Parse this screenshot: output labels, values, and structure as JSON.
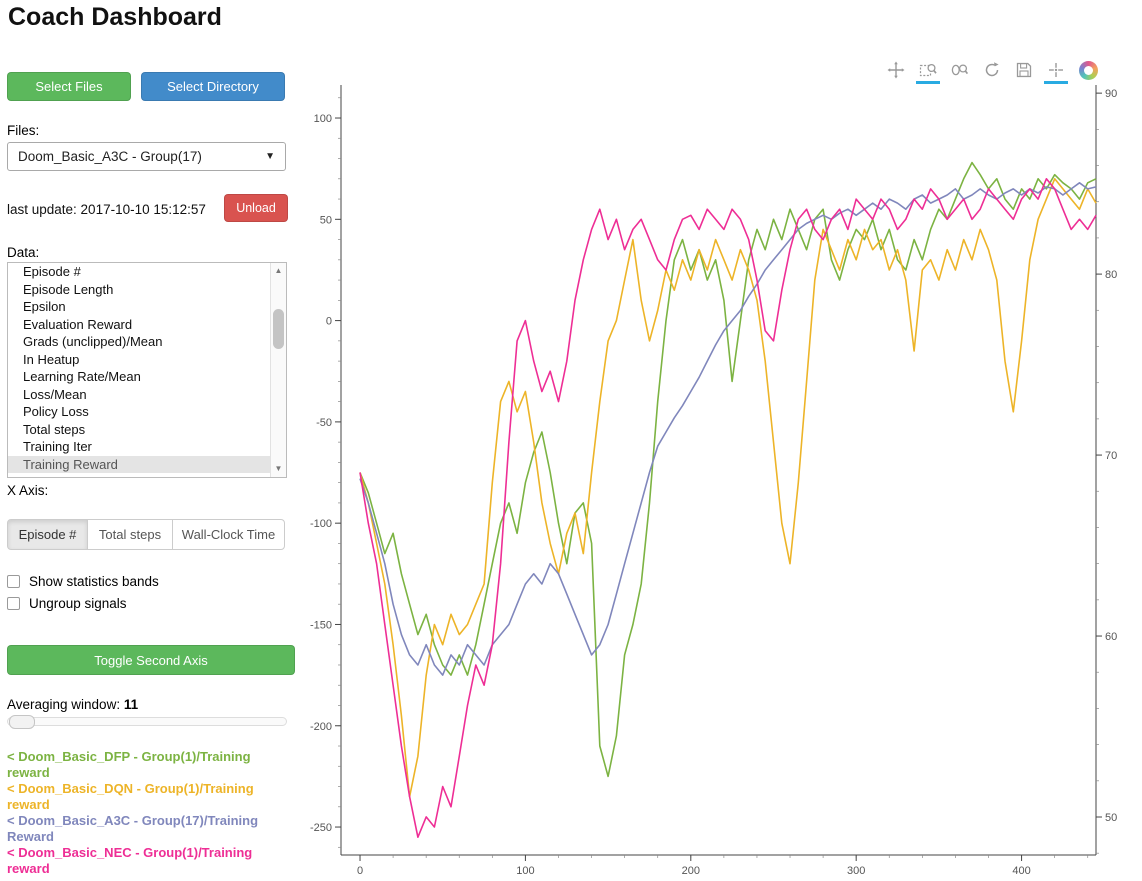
{
  "page": {
    "title": "Coach Dashboard"
  },
  "sidebar": {
    "select_files": "Select Files",
    "select_directory": "Select Directory",
    "files_label": "Files:",
    "files_value": "Doom_Basic_A3C - Group(17)",
    "last_update": "last update: 2017-10-10 15:12:57",
    "unload": "Unload",
    "data_label": "Data:",
    "data_list": [
      "Episode #",
      "Episode Length",
      "Epsilon",
      "Evaluation Reward",
      "Grads (unclipped)/Mean",
      "In Heatup",
      "Learning Rate/Mean",
      "Loss/Mean",
      "Policy Loss",
      "Total steps",
      "Training Iter",
      "Training Reward"
    ],
    "data_list_selected": "Training Reward",
    "x_axis_label": "X Axis:",
    "x_axis_options": [
      "Episode #",
      "Total steps",
      "Wall-Clock Time"
    ],
    "x_axis_active": "Episode #",
    "show_bands_label": "Show statistics bands",
    "ungroup_label": "Ungroup signals",
    "toggle_second_axis": "Toggle Second Axis",
    "averaging_label": "Averaging window:",
    "averaging_value": "11",
    "legend": [
      {
        "label": "< Doom_Basic_DFP - Group(1)/Training reward",
        "color": "#7cb342"
      },
      {
        "label": "< Doom_Basic_DQN - Group(1)/Training reward",
        "color": "#edb428"
      },
      {
        "label": "< Doom_Basic_A3C - Group(17)/Training Reward",
        "color": "#8087bc"
      },
      {
        "label": "< Doom_Basic_NEC - Group(1)/Training reward",
        "color": "#ee2e95"
      }
    ]
  },
  "toolbar": {
    "tools": [
      "pan",
      "box-zoom",
      "wheel-zoom",
      "reset",
      "save",
      "hover",
      "bokeh-logo"
    ],
    "active_tools": [
      "box-zoom",
      "hover"
    ],
    "accent": "#29abe2"
  },
  "chart_data": {
    "type": "line",
    "title": "",
    "xlabel": "",
    "ylabel": "",
    "xlim": [
      -11.5,
      445
    ],
    "ylim_left": [
      -263.8,
      116.3
    ],
    "ylim_right": [
      47.9,
      90.45
    ],
    "x_ticks": [
      0,
      100,
      200,
      300,
      400
    ],
    "y_ticks_left": [
      100,
      50,
      0,
      -50,
      -100,
      -150,
      -200,
      -250
    ],
    "y_ticks_right": [
      90,
      80,
      70,
      60,
      50
    ],
    "x_step": 5,
    "series": [
      {
        "name": "Doom_Basic_DFP - Group(1)/Training reward",
        "color": "#7cb342",
        "values": [
          -75,
          -85,
          -100,
          -115,
          -105,
          -125,
          -140,
          -155,
          -145,
          -160,
          -170,
          -175,
          -165,
          -175,
          -160,
          -140,
          -120,
          -100,
          -90,
          -105,
          -80,
          -65,
          -55,
          -75,
          -100,
          -120,
          -95,
          -90,
          -110,
          -210,
          -225,
          -205,
          -165,
          -150,
          -130,
          -90,
          -40,
          0,
          30,
          40,
          25,
          35,
          20,
          30,
          10,
          -30,
          0,
          30,
          45,
          35,
          50,
          40,
          55,
          45,
          35,
          50,
          55,
          30,
          20,
          35,
          45,
          40,
          50,
          35,
          45,
          30,
          25,
          40,
          30,
          45,
          55,
          50,
          60,
          70,
          78,
          72,
          65,
          70,
          60,
          55,
          65,
          60,
          70,
          65,
          72,
          68,
          65,
          60,
          68,
          70
        ]
      },
      {
        "name": "Doom_Basic_DQN - Group(1)/Training reward",
        "color": "#edb428",
        "values": [
          -75,
          -90,
          -110,
          -130,
          -160,
          -195,
          -235,
          -215,
          -175,
          -150,
          -160,
          -145,
          -155,
          -150,
          -140,
          -130,
          -80,
          -40,
          -30,
          -45,
          -35,
          -60,
          -90,
          -110,
          -125,
          -105,
          -95,
          -115,
          -75,
          -40,
          -10,
          0,
          20,
          40,
          10,
          -10,
          5,
          25,
          15,
          30,
          20,
          35,
          25,
          40,
          30,
          20,
          35,
          25,
          10,
          -20,
          -60,
          -100,
          -120,
          -80,
          -30,
          20,
          45,
          35,
          25,
          40,
          30,
          45,
          35,
          40,
          25,
          35,
          20,
          -15,
          25,
          30,
          20,
          35,
          25,
          40,
          30,
          45,
          35,
          20,
          -20,
          -45,
          -10,
          30,
          50,
          60,
          70,
          65,
          60,
          55,
          65,
          58
        ]
      },
      {
        "name": "Doom_Basic_A3C - Group(17)/Training Reward",
        "color": "#8087bc",
        "values": [
          -78,
          -90,
          -105,
          -120,
          -140,
          -155,
          -165,
          -170,
          -160,
          -170,
          -175,
          -165,
          -170,
          -160,
          -165,
          -170,
          -160,
          -155,
          -150,
          -140,
          -130,
          -125,
          -130,
          -120,
          -125,
          -135,
          -145,
          -155,
          -165,
          -160,
          -150,
          -135,
          -120,
          -105,
          -90,
          -75,
          -62,
          -55,
          -48,
          -42,
          -35,
          -28,
          -20,
          -12,
          -5,
          0,
          5,
          12,
          18,
          25,
          30,
          35,
          40,
          45,
          48,
          50,
          52,
          50,
          53,
          55,
          52,
          55,
          58,
          55,
          60,
          58,
          55,
          60,
          62,
          58,
          60,
          62,
          65,
          60,
          62,
          65,
          62,
          60,
          63,
          65,
          62,
          65,
          63,
          66,
          65,
          62,
          65,
          68,
          65,
          66
        ]
      },
      {
        "name": "Doom_Basic_NEC - Group(1)/Training reward",
        "color": "#ee2e95",
        "values": [
          -75,
          -100,
          -120,
          -150,
          -180,
          -210,
          -235,
          -255,
          -245,
          -250,
          -230,
          -240,
          -215,
          -190,
          -170,
          -180,
          -160,
          -120,
          -60,
          -10,
          0,
          -20,
          -35,
          -25,
          -40,
          -20,
          10,
          30,
          45,
          55,
          40,
          50,
          35,
          45,
          50,
          40,
          30,
          25,
          40,
          50,
          52,
          45,
          55,
          50,
          45,
          55,
          50,
          40,
          20,
          -5,
          -10,
          15,
          35,
          50,
          55,
          45,
          40,
          50,
          55,
          45,
          60,
          55,
          50,
          60,
          55,
          45,
          50,
          60,
          55,
          65,
          60,
          50,
          55,
          60,
          50,
          55,
          65,
          60,
          55,
          50,
          60,
          65,
          60,
          70,
          65,
          55,
          45,
          50,
          45,
          52
        ]
      }
    ]
  }
}
